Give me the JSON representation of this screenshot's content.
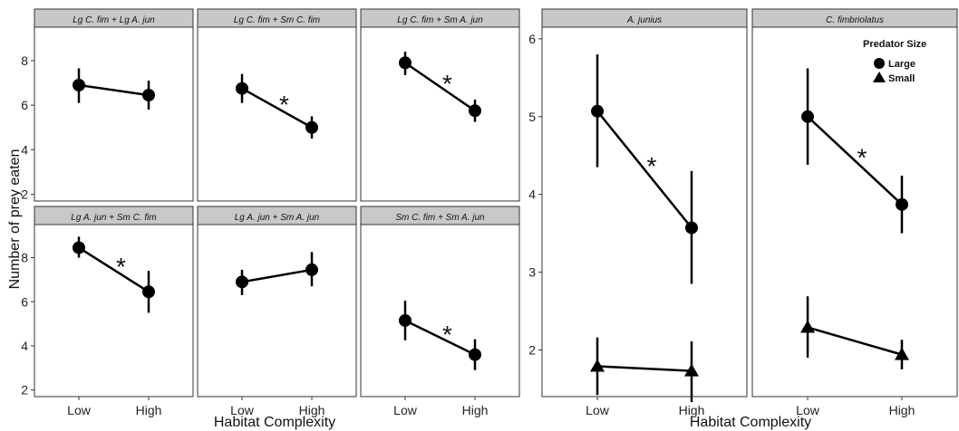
{
  "chart_data": [
    {
      "type": "line",
      "ylabel": "Number of prey eaten",
      "xlabel": "Habitat Complexity",
      "categories": [
        "Low",
        "High"
      ],
      "ylim": [
        1.7,
        9.5
      ],
      "yticks": [
        2,
        4,
        6,
        8
      ],
      "grid": false,
      "panels": [
        {
          "title": "Lg C. fim + Lg A. jun",
          "series": [
            {
              "marker": "circle",
              "values": [
                6.9,
                6.45
              ],
              "err_low": [
                6.1,
                5.8
              ],
              "err_high": [
                7.65,
                7.1
              ]
            }
          ],
          "sig": ""
        },
        {
          "title": "Lg C. fim + Sm C. fim",
          "series": [
            {
              "marker": "circle",
              "values": [
                6.75,
                5.0
              ],
              "err_low": [
                6.1,
                4.5
              ],
              "err_high": [
                7.4,
                5.5
              ]
            }
          ],
          "sig": "*"
        },
        {
          "title": "Lg C. fim + Sm A. jun",
          "series": [
            {
              "marker": "circle",
              "values": [
                7.9,
                5.75
              ],
              "err_low": [
                7.35,
                5.25
              ],
              "err_high": [
                8.4,
                6.25
              ]
            }
          ],
          "sig": "*"
        },
        {
          "title": "Lg A. jun + Sm C. fim",
          "series": [
            {
              "marker": "circle",
              "values": [
                8.45,
                6.45
              ],
              "err_low": [
                8.0,
                5.5
              ],
              "err_high": [
                8.95,
                7.4
              ]
            }
          ],
          "sig": "*"
        },
        {
          "title": "Lg A. jun + Sm A. jun",
          "series": [
            {
              "marker": "circle",
              "values": [
                6.9,
                7.45
              ],
              "err_low": [
                6.3,
                6.7
              ],
              "err_high": [
                7.45,
                8.25
              ]
            }
          ],
          "sig": ""
        },
        {
          "title": "Sm C. fim + Sm A. jun",
          "series": [
            {
              "marker": "circle",
              "values": [
                5.15,
                3.6
              ],
              "err_low": [
                4.25,
                2.9
              ],
              "err_high": [
                6.05,
                4.3
              ]
            }
          ],
          "sig": "*"
        }
      ]
    },
    {
      "type": "line",
      "ylabel": "",
      "xlabel": "Habitat Complexity",
      "categories": [
        "Low",
        "High"
      ],
      "ylim": [
        1.4,
        6.15
      ],
      "yticks": [
        2,
        3,
        4,
        5,
        6
      ],
      "grid": false,
      "legend": {
        "title": "Predator Size",
        "position": "top-right",
        "entries": [
          {
            "label": "Large",
            "marker": "circle"
          },
          {
            "label": "Small",
            "marker": "triangle"
          }
        ]
      },
      "panels": [
        {
          "title": "A. junius",
          "series": [
            {
              "name": "Large",
              "marker": "circle",
              "values": [
                5.07,
                3.57
              ],
              "err_low": [
                4.35,
                2.85
              ],
              "err_high": [
                5.8,
                4.3
              ]
            },
            {
              "name": "Small",
              "marker": "triangle",
              "values": [
                1.79,
                1.73
              ],
              "err_low": [
                1.42,
                1.33
              ],
              "err_high": [
                2.16,
                2.11
              ]
            }
          ],
          "sig": "*"
        },
        {
          "title": "C. fimbriolatus",
          "series": [
            {
              "name": "Large",
              "marker": "circle",
              "values": [
                5.0,
                3.87
              ],
              "err_low": [
                4.38,
                3.5
              ],
              "err_high": [
                5.62,
                4.24
              ]
            },
            {
              "name": "Small",
              "marker": "triangle",
              "values": [
                2.29,
                1.94
              ],
              "err_low": [
                1.9,
                1.75
              ],
              "err_high": [
                2.69,
                2.13
              ]
            }
          ],
          "sig": "*"
        }
      ]
    }
  ]
}
